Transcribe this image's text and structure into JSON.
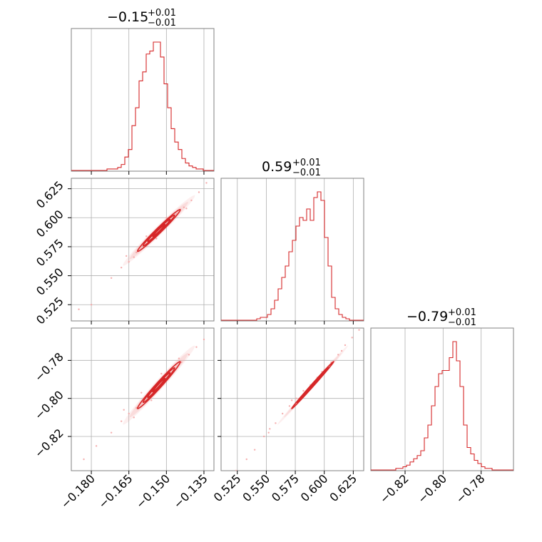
{
  "chart_data": {
    "type": "corner",
    "parameters": [
      {
        "title_value": "−0.15",
        "title_plus": "+0.01",
        "title_minus": "−0.01",
        "range": [
          -0.188,
          -0.131
        ],
        "ticks": [
          -0.18,
          -0.165,
          -0.15,
          -0.135
        ],
        "tick_labels": [
          "−0.180",
          "−0.165",
          "−0.150",
          "−0.135"
        ],
        "hist_counts": [
          0,
          0,
          0,
          0,
          0,
          0,
          0,
          0,
          0,
          0,
          1,
          1,
          1,
          2,
          4,
          9,
          14,
          30,
          42,
          60,
          66,
          78,
          80,
          86,
          86,
          76,
          58,
          42,
          28,
          19,
          14,
          8,
          5,
          3,
          2,
          1,
          1,
          0,
          0,
          0
        ]
      },
      {
        "title_value": "0.59",
        "title_plus": "+0.01",
        "title_minus": "−0.01",
        "range": [
          0.511,
          0.634
        ],
        "ticks": [
          0.525,
          0.55,
          0.575,
          0.6,
          0.625
        ],
        "tick_labels": [
          "0.525",
          "0.550",
          "0.575",
          "0.600",
          "0.625"
        ],
        "hist_counts": [
          0,
          0,
          0,
          0,
          0,
          0,
          0,
          0,
          0,
          0,
          1,
          2,
          2,
          4,
          8,
          14,
          22,
          30,
          38,
          48,
          56,
          66,
          72,
          70,
          78,
          70,
          86,
          90,
          84,
          58,
          38,
          16,
          8,
          4,
          2,
          1,
          0,
          0,
          0,
          0
        ]
      },
      {
        "title_value": "−0.79",
        "title_plus": "+0.01",
        "title_minus": "−0.01",
        "range": [
          -0.838,
          -0.763
        ],
        "ticks": [
          -0.82,
          -0.8,
          -0.78
        ],
        "tick_labels": [
          "−0.82",
          "−0.80",
          "−0.78"
        ],
        "hist_counts": [
          0,
          0,
          0,
          0,
          0,
          0,
          0,
          1,
          1,
          2,
          3,
          5,
          7,
          9,
          12,
          20,
          28,
          40,
          52,
          60,
          62,
          62,
          70,
          80,
          68,
          52,
          28,
          14,
          10,
          6,
          4,
          2,
          1,
          1,
          0,
          0,
          0,
          0,
          0,
          0
        ]
      }
    ],
    "panels_2d": [
      {
        "x_param": 0,
        "y_param": 1,
        "center": [
          -0.153,
          0.589
        ],
        "sigma": [
          0.0045,
          0.0095
        ],
        "correlation": 0.985,
        "sample_points": [
          [
            -0.185,
            0.521
          ],
          [
            -0.18,
            0.525
          ],
          [
            -0.172,
            0.548
          ],
          [
            -0.168,
            0.557
          ],
          [
            -0.165,
            0.562
          ],
          [
            -0.163,
            0.566
          ],
          [
            -0.16,
            0.573
          ],
          [
            -0.157,
            0.579
          ],
          [
            -0.155,
            0.585
          ],
          [
            -0.152,
            0.591
          ],
          [
            -0.149,
            0.597
          ],
          [
            -0.146,
            0.603
          ],
          [
            -0.143,
            0.609
          ],
          [
            -0.14,
            0.615
          ],
          [
            -0.137,
            0.622
          ],
          [
            -0.134,
            0.63
          ],
          [
            -0.166,
            0.567
          ],
          [
            -0.158,
            0.584
          ],
          [
            -0.15,
            0.6
          ],
          [
            -0.142,
            0.608
          ],
          [
            -0.162,
            0.57
          ],
          [
            -0.154,
            0.582
          ]
        ]
      },
      {
        "x_param": 0,
        "y_param": 2,
        "center": [
          -0.153,
          -0.793
        ],
        "sigma": [
          0.0045,
          0.0065
        ],
        "correlation": 0.985,
        "sample_points": [
          [
            -0.183,
            -0.832
          ],
          [
            -0.178,
            -0.825
          ],
          [
            -0.172,
            -0.818
          ],
          [
            -0.168,
            -0.812
          ],
          [
            -0.165,
            -0.808
          ],
          [
            -0.162,
            -0.805
          ],
          [
            -0.159,
            -0.8
          ],
          [
            -0.156,
            -0.796
          ],
          [
            -0.153,
            -0.792
          ],
          [
            -0.15,
            -0.788
          ],
          [
            -0.147,
            -0.785
          ],
          [
            -0.144,
            -0.781
          ],
          [
            -0.141,
            -0.777
          ],
          [
            -0.138,
            -0.773
          ],
          [
            -0.135,
            -0.769
          ],
          [
            -0.167,
            -0.806
          ],
          [
            -0.16,
            -0.797
          ],
          [
            -0.152,
            -0.787
          ],
          [
            -0.145,
            -0.779
          ],
          [
            -0.163,
            -0.81
          ],
          [
            -0.156,
            -0.801
          ]
        ]
      },
      {
        "x_param": 1,
        "y_param": 2,
        "center": [
          0.59,
          -0.793
        ],
        "sigma": [
          0.0095,
          0.0065
        ],
        "correlation": 0.997,
        "sample_points": [
          [
            0.524,
            -0.838
          ],
          [
            0.533,
            -0.832
          ],
          [
            0.54,
            -0.827
          ],
          [
            0.548,
            -0.82
          ],
          [
            0.553,
            -0.816
          ],
          [
            0.558,
            -0.813
          ],
          [
            0.564,
            -0.808
          ],
          [
            0.57,
            -0.804
          ],
          [
            0.576,
            -0.8
          ],
          [
            0.582,
            -0.796
          ],
          [
            0.588,
            -0.793
          ],
          [
            0.594,
            -0.789
          ],
          [
            0.6,
            -0.785
          ],
          [
            0.606,
            -0.781
          ],
          [
            0.612,
            -0.777
          ],
          [
            0.618,
            -0.772
          ],
          [
            0.624,
            -0.768
          ],
          [
            0.63,
            -0.764
          ],
          [
            0.552,
            -0.818
          ],
          [
            0.572,
            -0.801
          ],
          [
            0.598,
            -0.786
          ],
          [
            0.615,
            -0.775
          ]
        ]
      }
    ],
    "grid": true,
    "line_color": "#d62728",
    "scatter_color": "#f4a6a6"
  }
}
